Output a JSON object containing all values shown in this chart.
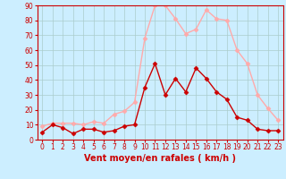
{
  "x": [
    0,
    1,
    2,
    3,
    4,
    5,
    6,
    7,
    8,
    9,
    10,
    11,
    12,
    13,
    14,
    15,
    16,
    17,
    18,
    19,
    20,
    21,
    22,
    23
  ],
  "wind_avg": [
    5,
    10,
    8,
    4,
    7,
    7,
    5,
    6,
    9,
    10,
    35,
    51,
    30,
    41,
    32,
    48,
    41,
    32,
    27,
    15,
    13,
    7,
    6,
    6
  ],
  "wind_gust": [
    9,
    11,
    11,
    11,
    10,
    12,
    11,
    17,
    19,
    25,
    68,
    90,
    90,
    81,
    71,
    74,
    87,
    81,
    80,
    60,
    51,
    30,
    21,
    13
  ],
  "avg_color": "#cc0000",
  "gust_color": "#ffaaaa",
  "bg_color": "#cceeff",
  "grid_color": "#aacccc",
  "ylim": [
    0,
    90
  ],
  "yticks": [
    0,
    10,
    20,
    30,
    40,
    50,
    60,
    70,
    80,
    90
  ],
  "xticks": [
    0,
    1,
    2,
    3,
    4,
    5,
    6,
    7,
    8,
    9,
    10,
    11,
    12,
    13,
    14,
    15,
    16,
    17,
    18,
    19,
    20,
    21,
    22,
    23
  ],
  "marker": "D",
  "marker_size": 2.5,
  "linewidth": 1.0,
  "xlabel": "Vent moyen/en rafales ( km/h )",
  "xlabel_color": "#cc0000",
  "tick_color": "#cc0000",
  "spine_color": "#cc0000",
  "tick_fontsize": 5.5,
  "xlabel_fontsize": 7.0
}
